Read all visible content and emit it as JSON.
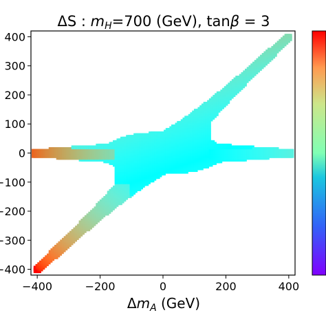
{
  "chart_data": {
    "type": "scatter",
    "title": "ΔS : m_H=700 (GeV), tanβ = 3",
    "title_parts": {
      "delta_s": "ΔS",
      "colon": " : ",
      "m": "m",
      "m_sub": "H",
      "mass": "=700 (GeV), tan",
      "beta": "β",
      "tail": " = 3"
    },
    "xlabel": "Δm_A (GeV)",
    "xlabel_parts": {
      "delta": "Δ",
      "m": "m",
      "sub": "A",
      "unit": " (GeV)"
    },
    "ylabel": "",
    "xlim": [
      -420,
      420
    ],
    "ylim": [
      -420,
      420
    ],
    "xticks": [
      -400,
      -200,
      0,
      200,
      400
    ],
    "xtick_labels": [
      "−400",
      "−200",
      "0",
      "200",
      "400"
    ],
    "yticks": [
      400,
      300,
      200,
      100,
      0,
      -100,
      -200,
      -300,
      -400
    ],
    "ytick_labels": [
      "400",
      "300",
      "200",
      "100",
      "0",
      "−100",
      "−200",
      "−300",
      "−400"
    ],
    "grid": false,
    "colorbar": {
      "colormap": "rainbow",
      "tick_labels": []
    },
    "region_description_series": [
      {
        "name": "",
        "boundary_upper_left": [
          [
            -400,
            12
          ],
          [
            -300,
            14
          ],
          [
            -200,
            17
          ],
          [
            -100,
            26
          ],
          [
            -50,
            38
          ],
          [
            0,
            62
          ],
          [
            50,
            98
          ],
          [
            100,
            160
          ],
          [
            150,
            215
          ],
          [
            200,
            268
          ],
          [
            300,
            342
          ],
          [
            400,
            405
          ]
        ],
        "boundary_lower_right": [
          [
            -400,
            -405
          ],
          [
            -300,
            -342
          ],
          [
            -200,
            -268
          ],
          [
            -150,
            -215
          ],
          [
            -100,
            -160
          ],
          [
            -50,
            -98
          ],
          [
            0,
            -62
          ],
          [
            50,
            -38
          ],
          [
            100,
            -26
          ],
          [
            200,
            -17
          ],
          [
            300,
            -14
          ],
          [
            400,
            -12
          ]
        ],
        "band_edges": [
          [
            -400,
            -10
          ],
          [
            -300,
            -11
          ],
          [
            -200,
            -16
          ],
          [
            -160,
            -30
          ],
          [
            -140,
            -60
          ],
          [
            -120,
            -120
          ],
          [
            -50,
            -20
          ],
          [
            0,
            0
          ],
          [
            50,
            20
          ],
          [
            120,
            120
          ],
          [
            140,
            60
          ],
          [
            160,
            30
          ],
          [
            200,
            16
          ],
          [
            300,
            11
          ],
          [
            400,
            10
          ]
        ]
      }
    ]
  }
}
